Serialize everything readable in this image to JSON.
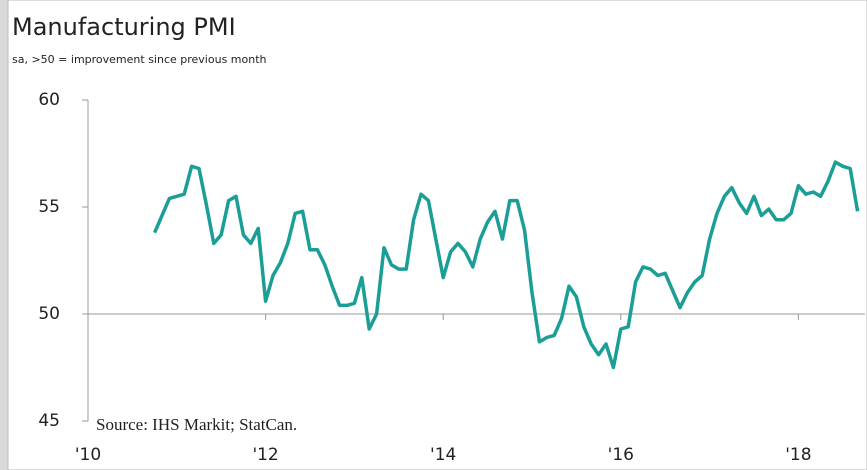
{
  "chart_data": {
    "type": "line",
    "title": "Manufacturing PMI",
    "subtitle": "sa, >50 = improvement since previous month",
    "annotation": "Source: IHS Markit; StatCan.",
    "color": "#1a9e96",
    "baseline": 50,
    "xlim": [
      2010,
      2018.75
    ],
    "xticks": [
      {
        "value": 2010,
        "label": "'10"
      },
      {
        "value": 2012,
        "label": "'12"
      },
      {
        "value": 2014,
        "label": "'14"
      },
      {
        "value": 2016,
        "label": "'16"
      },
      {
        "value": 2018,
        "label": "'18"
      }
    ],
    "ylim": [
      45,
      60
    ],
    "yticks": [
      45,
      50,
      55,
      60
    ],
    "x": [
      2010.75,
      2010.833,
      2010.917,
      2011,
      2011.083,
      2011.167,
      2011.25,
      2011.333,
      2011.417,
      2011.5,
      2011.583,
      2011.667,
      2011.75,
      2011.833,
      2011.917,
      2012,
      2012.083,
      2012.167,
      2012.25,
      2012.333,
      2012.417,
      2012.5,
      2012.583,
      2012.667,
      2012.75,
      2012.833,
      2012.917,
      2013,
      2013.083,
      2013.167,
      2013.25,
      2013.333,
      2013.417,
      2013.5,
      2013.583,
      2013.667,
      2013.75,
      2013.833,
      2013.917,
      2014,
      2014.083,
      2014.167,
      2014.25,
      2014.333,
      2014.417,
      2014.5,
      2014.583,
      2014.667,
      2014.75,
      2014.833,
      2014.917,
      2015,
      2015.083,
      2015.167,
      2015.25,
      2015.333,
      2015.417,
      2015.5,
      2015.583,
      2015.667,
      2015.75,
      2015.833,
      2015.917,
      2016,
      2016.083,
      2016.167,
      2016.25,
      2016.333,
      2016.417,
      2016.5,
      2016.583,
      2016.667,
      2016.75,
      2016.833,
      2016.917,
      2017,
      2017.083,
      2017.167,
      2017.25,
      2017.333,
      2017.417,
      2017.5,
      2017.583,
      2017.667,
      2017.75,
      2017.833,
      2017.917,
      2018,
      2018.083,
      2018.167,
      2018.25,
      2018.333,
      2018.417,
      2018.5,
      2018.583,
      2018.667
    ],
    "values": [
      53.8,
      54.6,
      55.4,
      55.5,
      55.6,
      56.9,
      56.8,
      55.1,
      53.3,
      53.7,
      55.3,
      55.5,
      53.7,
      53.3,
      54.0,
      50.6,
      51.8,
      52.4,
      53.3,
      54.7,
      54.8,
      53.0,
      53.0,
      52.3,
      51.3,
      50.4,
      50.4,
      50.5,
      51.7,
      49.3,
      50.0,
      53.1,
      52.3,
      52.1,
      52.1,
      54.4,
      55.6,
      55.3,
      53.5,
      51.7,
      52.9,
      53.3,
      52.9,
      52.2,
      53.5,
      54.3,
      54.8,
      53.5,
      55.3,
      55.3,
      53.9,
      51.0,
      48.7,
      48.9,
      49.0,
      49.8,
      51.3,
      50.8,
      49.4,
      48.6,
      48.1,
      48.6,
      47.5,
      49.3,
      49.4,
      51.5,
      52.2,
      52.1,
      51.8,
      51.9,
      51.1,
      50.3,
      51.0,
      51.5,
      51.8,
      53.5,
      54.7,
      55.5,
      55.9,
      55.2,
      54.7,
      55.5,
      54.6,
      54.9,
      54.4,
      54.4,
      54.7,
      56.0,
      55.6,
      55.7,
      55.5,
      56.2,
      57.1,
      56.9,
      56.8,
      54.8
    ]
  }
}
